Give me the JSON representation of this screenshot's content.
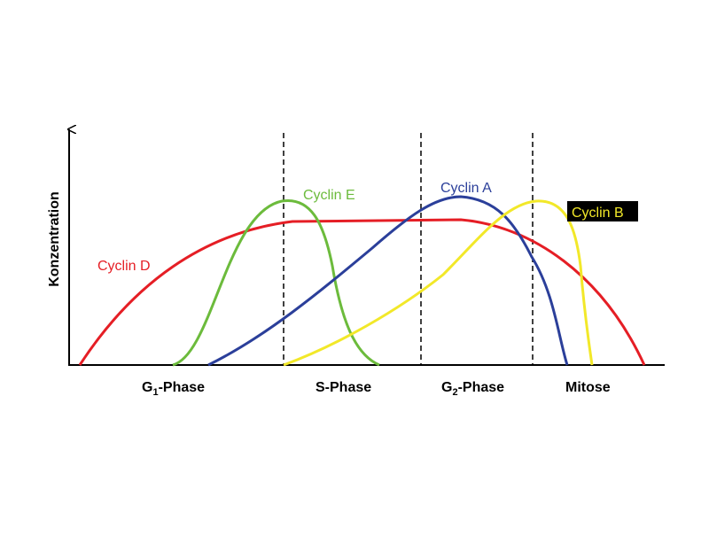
{
  "axis_label": "Konzentration",
  "curves": [
    {
      "label": "Cyclin D"
    },
    {
      "label": "Cyclin E"
    },
    {
      "label": "Cyclin A"
    },
    {
      "label": "Cyclin B"
    }
  ],
  "phases": [
    {
      "name": "G",
      "subscript": "1",
      "suffix": "-Phase"
    },
    {
      "name": "S-Phase"
    },
    {
      "name": "G",
      "subscript": "2",
      "suffix": "-Phase"
    },
    {
      "name": "Mitose"
    }
  ]
}
